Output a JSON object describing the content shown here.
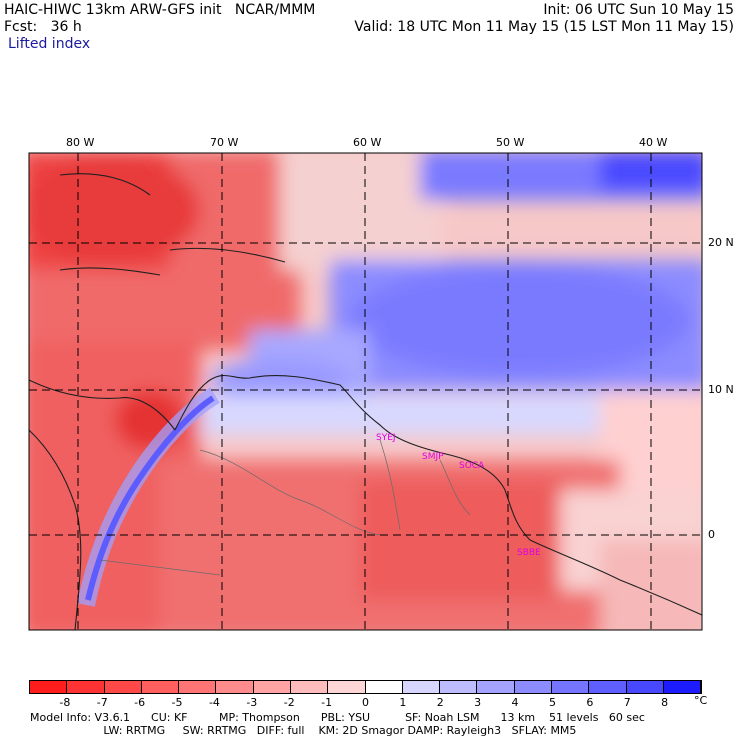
{
  "header": {
    "line1_left": "HAIC-HIWC 13km ARW-GFS init   NCAR/MMM",
    "line1_right": "Init: 06 UTC Sun 10 May 15",
    "line2_left": "Fcst:   36 h",
    "line2_right": "Valid: 18 UTC Mon 11 May 15 (15 LST Mon 11 May 15)",
    "line3": "Lifted index"
  },
  "map": {
    "lon_labels": [
      "80 W",
      "70 W",
      "60 W",
      "50 W",
      "40 W"
    ],
    "lat_labels": [
      "20 N",
      "10 N",
      "0"
    ],
    "stations": [
      "SYEJ",
      "SMJP",
      "SOCA",
      "SBBE"
    ],
    "station_color": "#e000e0",
    "colors": {
      "negative": "#ff2020",
      "zero": "#ffffff",
      "positive": "#2020ff"
    }
  },
  "colorbar": {
    "labels": [
      "-8",
      "-7",
      "-6",
      "-5",
      "-4",
      "-3",
      "-2",
      "-1",
      "0",
      "1",
      "2",
      "3",
      "4",
      "5",
      "6",
      "7",
      "8"
    ],
    "unit": "°C",
    "colors": [
      "#ff1c1c",
      "#ff3333",
      "#ff4848",
      "#ff5f5f",
      "#ff7575",
      "#ff8c8c",
      "#ffa4a4",
      "#ffbcbc",
      "#ffd6d6",
      "#ffffff",
      "#d6d6ff",
      "#bcbcff",
      "#a4a4ff",
      "#8c8cff",
      "#7575ff",
      "#5f5fff",
      "#4848ff",
      "#1c1cff"
    ]
  },
  "footer": {
    "line1": "Model Info: V3.6.1      CU: KF         MP: Thompson      PBL: YSU          SF: Noah LSM      13 km    51 levels   60 sec",
    "line2": "                     LW: RRTMG     SW: RRTMG   DIFF: full    KM: 2D Smagor DAMP: Rayleigh3   SFLAY: MM5"
  }
}
